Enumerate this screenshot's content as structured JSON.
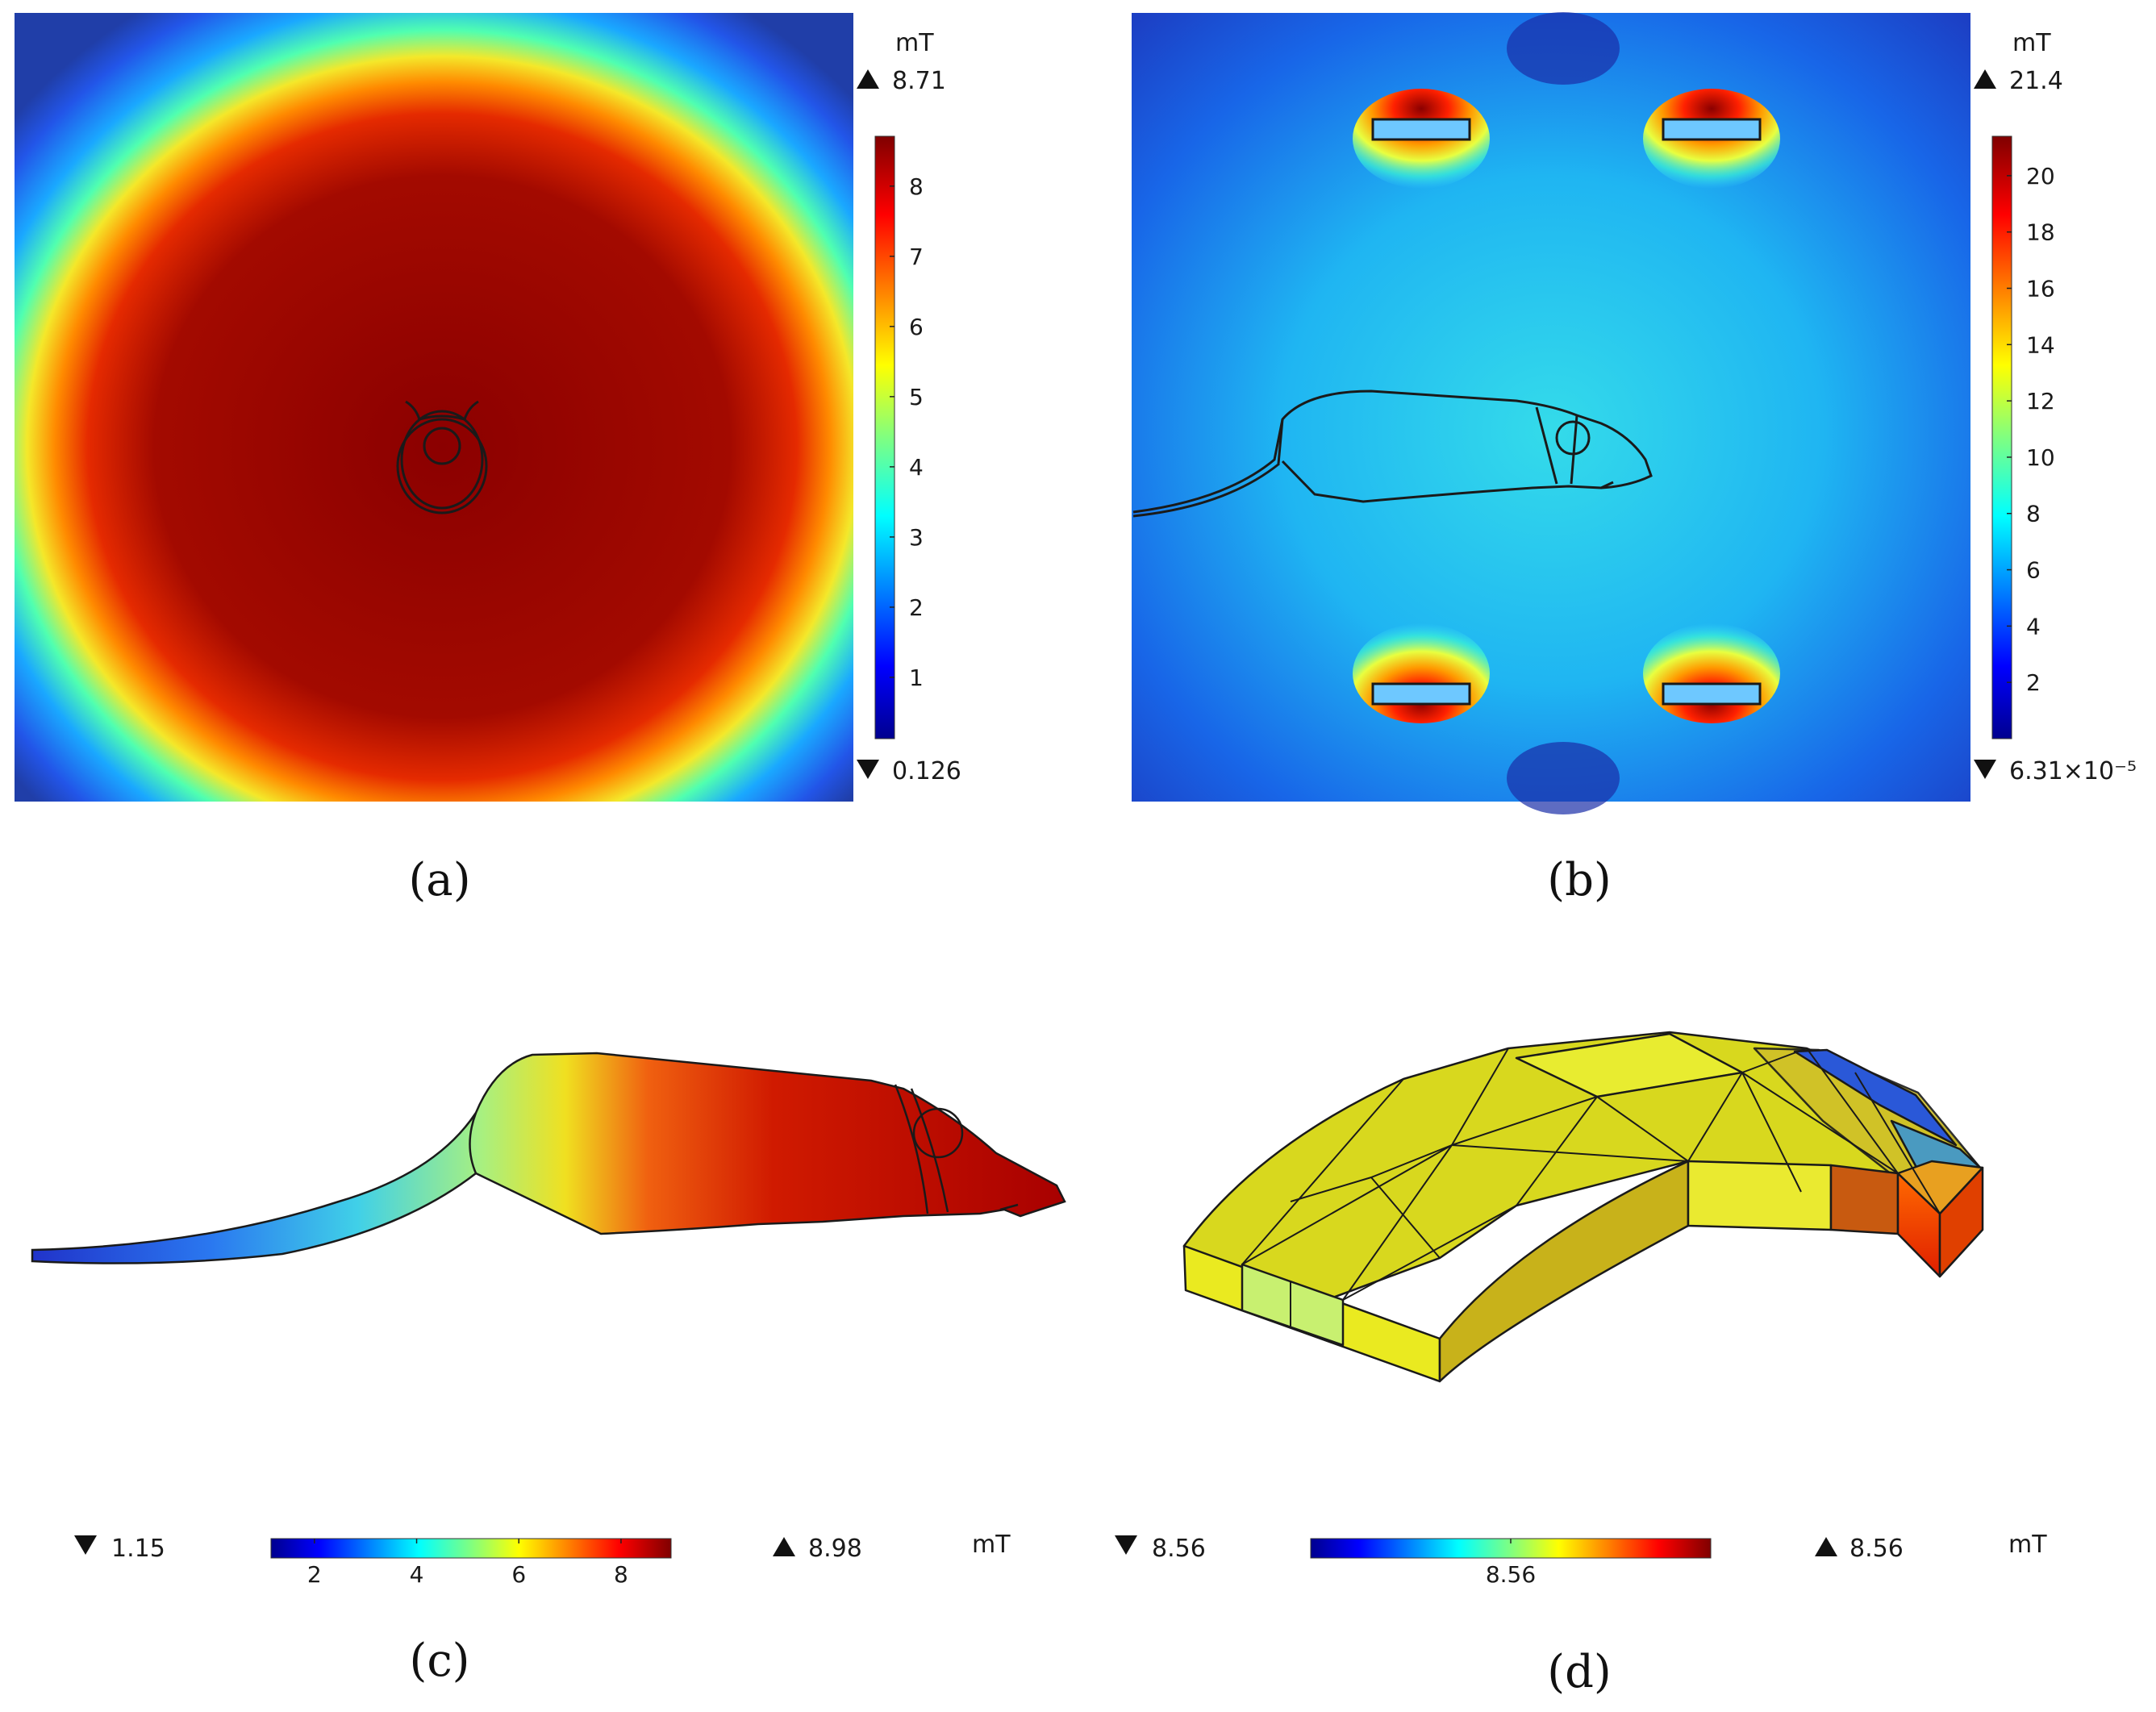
{
  "chart_data": [
    {
      "panel": "(a)",
      "type": "heatmap",
      "unit": "mT",
      "max_label": "8.71",
      "min_label": "0.126",
      "range": [
        0.126,
        8.71
      ],
      "ticks": [
        "1",
        "2",
        "3",
        "4",
        "5",
        "6",
        "7",
        "8"
      ],
      "tick_values": [
        1,
        2,
        3,
        4,
        5,
        6,
        7,
        8
      ],
      "caption": "(a)"
    },
    {
      "panel": "(b)",
      "type": "heatmap",
      "unit": "mT",
      "max_label": "21.4",
      "min_label": "6.31×10⁻⁵",
      "range": [
        6.31e-05,
        21.4
      ],
      "ticks": [
        "2",
        "4",
        "6",
        "8",
        "10",
        "12",
        "14",
        "16",
        "18",
        "20"
      ],
      "tick_values": [
        2,
        4,
        6,
        8,
        10,
        12,
        14,
        16,
        18,
        20
      ],
      "caption": "(b)"
    },
    {
      "panel": "(c)",
      "type": "heatmap",
      "unit": "mT",
      "max_label": "8.98",
      "min_label": "1.15",
      "range": [
        1.15,
        8.98
      ],
      "ticks": [
        "2",
        "4",
        "6",
        "8"
      ],
      "tick_values": [
        2,
        4,
        6,
        8
      ],
      "caption": "(c)"
    },
    {
      "panel": "(d)",
      "type": "heatmap",
      "unit": "mT",
      "max_label": "8.56",
      "min_label": "8.56",
      "range": [
        8.5599,
        8.5601
      ],
      "ticks": [
        "8.56"
      ],
      "tick_values": [
        8.56
      ],
      "caption": "(d)"
    }
  ],
  "colors": {
    "jet": [
      "#00008f",
      "#0000ff",
      "#0080ff",
      "#00ffff",
      "#80ff80",
      "#ffff00",
      "#ff8000",
      "#ff0000",
      "#800000"
    ],
    "outline": "#1a1a1a"
  }
}
